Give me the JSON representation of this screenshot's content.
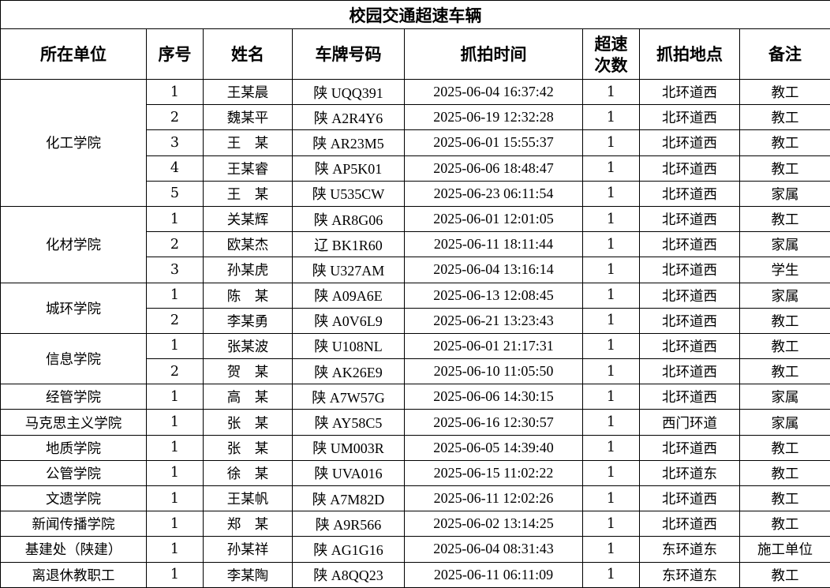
{
  "title": "校园交通超速车辆",
  "headers": [
    "所在单位",
    "序号",
    "姓名",
    "车牌号码",
    "抓拍时间",
    "超速\n次数",
    "抓拍地点",
    "备注"
  ],
  "groups": [
    {
      "unit": "化工学院",
      "rows": [
        [
          "1",
          "王某晨",
          "陕 UQQ391",
          "2025-06-04 16:37:42",
          "1",
          "北环道西",
          "教工"
        ],
        [
          "2",
          "魏某平",
          "陕 A2R4Y6",
          "2025-06-19 12:32:28",
          "1",
          "北环道西",
          "教工"
        ],
        [
          "3",
          "王　某",
          "陕 AR23M5",
          "2025-06-01 15:55:37",
          "1",
          "北环道西",
          "教工"
        ],
        [
          "4",
          "王某睿",
          "陕 AP5K01",
          "2025-06-06 18:48:47",
          "1",
          "北环道西",
          "教工"
        ],
        [
          "5",
          "王　某",
          "陕 U535CW",
          "2025-06-23 06:11:54",
          "1",
          "北环道西",
          "家属"
        ]
      ]
    },
    {
      "unit": "化材学院",
      "rows": [
        [
          "1",
          "关某辉",
          "陕 AR8G06",
          "2025-06-01 12:01:05",
          "1",
          "北环道西",
          "教工"
        ],
        [
          "2",
          "欧某杰",
          "辽 BK1R60",
          "2025-06-11 18:11:44",
          "1",
          "北环道西",
          "家属"
        ],
        [
          "3",
          "孙某虎",
          "陕 U327AM",
          "2025-06-04 13:16:14",
          "1",
          "北环道西",
          "学生"
        ]
      ]
    },
    {
      "unit": "城环学院",
      "rows": [
        [
          "1",
          "陈　某",
          "陕 A09A6E",
          "2025-06-13 12:08:45",
          "1",
          "北环道西",
          "家属"
        ],
        [
          "2",
          "李某勇",
          "陕 A0V6L9",
          "2025-06-21 13:23:43",
          "1",
          "北环道西",
          "教工"
        ]
      ]
    },
    {
      "unit": "信息学院",
      "rows": [
        [
          "1",
          "张某波",
          "陕 U108NL",
          "2025-06-01 21:17:31",
          "1",
          "北环道西",
          "教工"
        ],
        [
          "2",
          "贺　某",
          "陕 AK26E9",
          "2025-06-10 11:05:50",
          "1",
          "北环道西",
          "教工"
        ]
      ]
    },
    {
      "unit": "经管学院",
      "rows": [
        [
          "1",
          "高　某",
          "陕 A7W57G",
          "2025-06-06 14:30:15",
          "1",
          "北环道西",
          "家属"
        ]
      ]
    },
    {
      "unit": "马克思主义学院",
      "rows": [
        [
          "1",
          "张　某",
          "陕 AY58C5",
          "2025-06-16 12:30:57",
          "1",
          "西门环道",
          "家属"
        ]
      ]
    },
    {
      "unit": "地质学院",
      "rows": [
        [
          "1",
          "张　某",
          "陕 UM003R",
          "2025-06-05 14:39:40",
          "1",
          "北环道西",
          "教工"
        ]
      ]
    },
    {
      "unit": "公管学院",
      "rows": [
        [
          "1",
          "徐　某",
          "陕 UVA016",
          "2025-06-15 11:02:22",
          "1",
          "北环道东",
          "教工"
        ]
      ]
    },
    {
      "unit": "文遗学院",
      "rows": [
        [
          "1",
          "王某帆",
          "陕 A7M82D",
          "2025-06-11 12:02:26",
          "1",
          "北环道西",
          "教工"
        ]
      ]
    },
    {
      "unit": "新闻传播学院",
      "rows": [
        [
          "1",
          "郑　某",
          "陕 A9R566",
          "2025-06-02 13:14:25",
          "1",
          "北环道西",
          "教工"
        ]
      ]
    },
    {
      "unit": "基建处（陕建）",
      "rows": [
        [
          "1",
          "孙某祥",
          "陕 AG1G16",
          "2025-06-04 08:31:43",
          "1",
          "东环道东",
          "施工单位"
        ]
      ]
    },
    {
      "unit": "离退休教职工",
      "rows": [
        [
          "1",
          "李某陶",
          "陕 A8QQ23",
          "2025-06-11 06:11:09",
          "1",
          "东环道东",
          "教工"
        ]
      ]
    }
  ]
}
